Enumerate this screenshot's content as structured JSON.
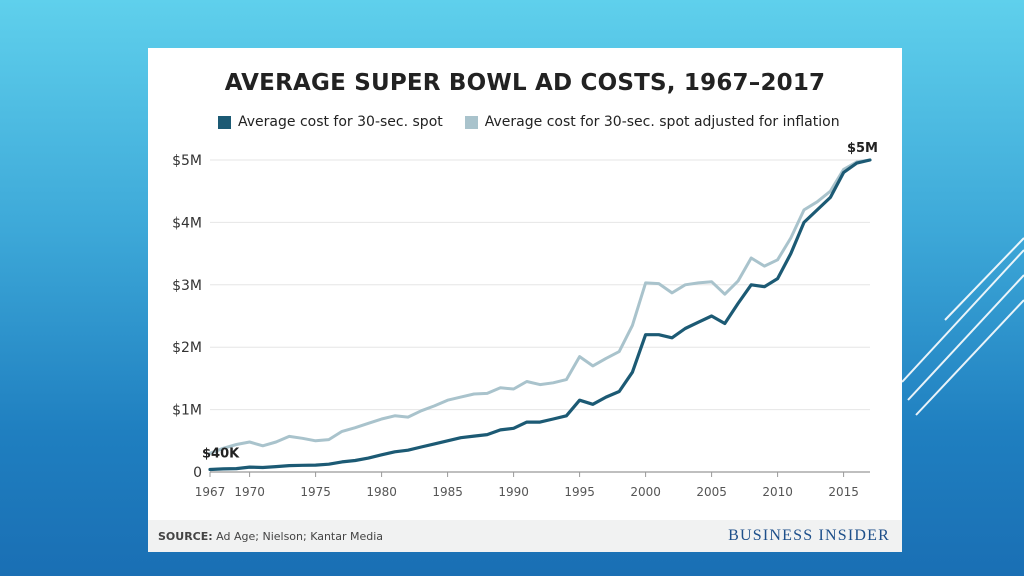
{
  "colors": {
    "nominal": "#1c5a74",
    "adjusted": "#a9c3cc",
    "grid": "#e6e6e6",
    "axis": "#999999"
  },
  "source": {
    "label": "SOURCE:",
    "text": "Ad Age; Nielson; Kantar Media"
  },
  "brand": "BUSINESS INSIDER",
  "chart_data": {
    "type": "line",
    "title": "AVERAGE SUPER BOWL AD COSTS, 1967–2017",
    "xlim": [
      1967,
      2017
    ],
    "ylim": [
      0,
      5000000
    ],
    "x_ticks": [
      1967,
      1970,
      1975,
      1980,
      1985,
      1990,
      1995,
      2000,
      2005,
      2010,
      2015
    ],
    "y_ticks": [
      {
        "value": 0,
        "label": "0"
      },
      {
        "value": 1000000,
        "label": "$1M"
      },
      {
        "value": 2000000,
        "label": "$2M"
      },
      {
        "value": 3000000,
        "label": "$3M"
      },
      {
        "value": 4000000,
        "label": "$4M"
      },
      {
        "value": 5000000,
        "label": "$5M"
      }
    ],
    "grid": true,
    "legend_position": "top-left",
    "annotations": [
      {
        "text": "$40K",
        "x": 1967,
        "y": 40000
      },
      {
        "text": "$5M",
        "x": 2017,
        "y": 5000000
      }
    ],
    "x": [
      1967,
      1968,
      1969,
      1970,
      1971,
      1972,
      1973,
      1974,
      1975,
      1976,
      1977,
      1978,
      1979,
      1980,
      1981,
      1982,
      1983,
      1984,
      1985,
      1986,
      1987,
      1988,
      1989,
      1990,
      1991,
      1992,
      1993,
      1994,
      1995,
      1996,
      1997,
      1998,
      1999,
      2000,
      2001,
      2002,
      2003,
      2004,
      2005,
      2006,
      2007,
      2008,
      2009,
      2010,
      2011,
      2012,
      2013,
      2014,
      2015,
      2016,
      2017
    ],
    "series": [
      {
        "name": "Average cost for 30-sec. spot adjusted for inflation",
        "key": "adjusted",
        "values": [
          300000,
          380000,
          440000,
          480000,
          420000,
          480000,
          570000,
          540000,
          500000,
          520000,
          650000,
          710000,
          780000,
          850000,
          900000,
          880000,
          980000,
          1060000,
          1150000,
          1200000,
          1250000,
          1260000,
          1350000,
          1330000,
          1450000,
          1400000,
          1430000,
          1480000,
          1850000,
          1700000,
          1820000,
          1930000,
          2350000,
          3030000,
          3020000,
          2870000,
          3000000,
          3030000,
          3050000,
          2850000,
          3060000,
          3430000,
          3300000,
          3400000,
          3750000,
          4200000,
          4330000,
          4500000,
          4850000,
          4970000,
          5000000
        ]
      },
      {
        "name": "Average cost for 30-sec. spot",
        "key": "nominal",
        "values": [
          40000,
          50000,
          55000,
          78000,
          72000,
          86000,
          103000,
          107000,
          110000,
          125000,
          162000,
          185000,
          222000,
          275000,
          324000,
          350000,
          400000,
          450000,
          500000,
          550000,
          575000,
          600000,
          675000,
          700000,
          800000,
          800000,
          850000,
          900000,
          1150000,
          1085000,
          1200000,
          1290000,
          1600000,
          2200000,
          2200000,
          2150000,
          2300000,
          2400000,
          2500000,
          2380000,
          2700000,
          3000000,
          2970000,
          3100000,
          3500000,
          4000000,
          4200000,
          4400000,
          4800000,
          4950000,
          5000000
        ]
      }
    ]
  }
}
